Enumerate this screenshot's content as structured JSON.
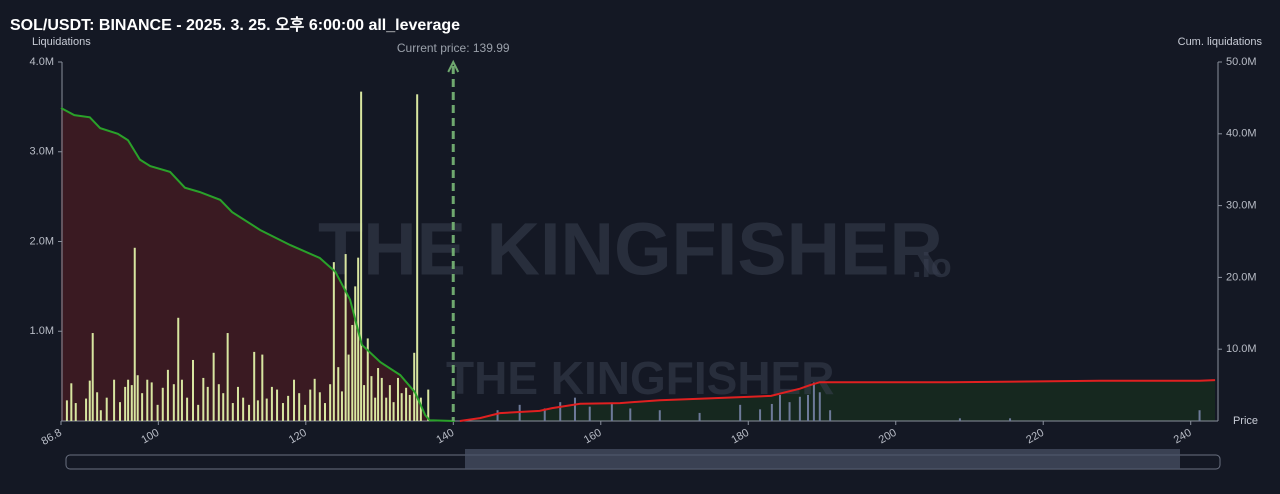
{
  "chart_data": {
    "type": "liquidation",
    "title": "SOL/USDT: BINANCE - 2025. 3. 25. 오후 6:00:00 all_leverage",
    "y_label": "Liquidations",
    "y2_label": "Cum. liquidations",
    "x_label": "Price",
    "watermark": "THE KINGFISHER",
    "watermark_suffix": ".io",
    "current_price": {
      "value": 139.99,
      "label": "Current price: 139.99"
    },
    "xlim": [
      86.8,
      243.7
    ],
    "xticks": [
      86.8,
      100,
      120,
      140,
      160,
      180,
      200,
      220,
      240
    ],
    "ylim": [
      0,
      4000000
    ],
    "yticks": [
      {
        "value": 1000000,
        "label": "1.0M"
      },
      {
        "value": 2000000,
        "label": "2.0M"
      },
      {
        "value": 3000000,
        "label": "3.0M"
      },
      {
        "value": 4000000,
        "label": "4.0M"
      }
    ],
    "y2lim": [
      0,
      50000000
    ],
    "y2ticks": [
      {
        "value": 10000000,
        "label": "10.0M"
      },
      {
        "value": 20000000,
        "label": "20.0M"
      },
      {
        "value": 30000000,
        "label": "30.0M"
      },
      {
        "value": 40000000,
        "label": "40.0M"
      },
      {
        "value": 50000000,
        "label": "50.0M"
      }
    ],
    "long_bars": {
      "color": "#d8e6a0",
      "x": [
        87.6,
        88.2,
        88.8,
        90.2,
        90.7,
        91.1,
        91.7,
        92.2,
        93.0,
        94.0,
        94.8,
        95.5,
        95.9,
        96.4,
        96.8,
        97.2,
        97.8,
        98.5,
        99.1,
        99.9,
        100.6,
        101.3,
        102.1,
        102.7,
        103.2,
        103.9,
        104.7,
        105.4,
        106.1,
        106.7,
        107.5,
        108.2,
        108.8,
        109.4,
        110.1,
        110.8,
        111.5,
        112.3,
        113.0,
        113.5,
        114.1,
        114.7,
        115.4,
        116.1,
        116.9,
        117.6,
        118.4,
        119.1,
        119.9,
        120.6,
        121.2,
        121.9,
        122.6,
        123.3,
        123.8,
        124.4,
        124.9,
        125.4,
        125.8,
        126.3,
        126.7,
        127.1,
        127.5,
        127.9,
        128.4,
        128.9,
        129.4,
        129.8,
        130.3,
        130.9,
        131.4,
        131.9,
        132.5,
        133.0,
        133.6,
        134.1,
        134.7,
        135.1,
        135.6,
        136.6
      ],
      "values": [
        230000,
        420000,
        200000,
        250000,
        450000,
        980000,
        320000,
        120000,
        260000,
        460000,
        210000,
        380000,
        460000,
        400000,
        1930000,
        510000,
        310000,
        460000,
        430000,
        180000,
        370000,
        570000,
        410000,
        1150000,
        460000,
        260000,
        680000,
        180000,
        480000,
        380000,
        760000,
        410000,
        310000,
        980000,
        200000,
        380000,
        260000,
        180000,
        770000,
        230000,
        740000,
        250000,
        380000,
        350000,
        200000,
        280000,
        460000,
        310000,
        180000,
        350000,
        470000,
        320000,
        200000,
        410000,
        1770000,
        600000,
        330000,
        1860000,
        740000,
        1070000,
        1500000,
        1820000,
        3670000,
        400000,
        920000,
        500000,
        260000,
        590000,
        480000,
        260000,
        400000,
        210000,
        480000,
        310000,
        370000,
        290000,
        760000,
        3640000,
        260000,
        350000
      ]
    },
    "short_bars": {
      "color": "#6d7a99",
      "x": [
        146.0,
        149.0,
        152.4,
        154.5,
        156.5,
        158.5,
        161.5,
        164.0,
        168.0,
        173.4,
        178.9,
        181.6,
        183.2,
        184.3,
        185.6,
        187.0,
        188.1,
        188.9,
        189.7,
        191.1,
        208.7,
        215.5,
        241.2
      ],
      "values": [
        120000,
        180000,
        140000,
        210000,
        260000,
        160000,
        190000,
        140000,
        120000,
        90000,
        180000,
        130000,
        190000,
        290000,
        210000,
        270000,
        290000,
        430000,
        320000,
        120000,
        30000,
        30000,
        120000
      ]
    },
    "long_cum": {
      "color": "#2aa12a",
      "fill": "#3a1a22",
      "x": [
        86.8,
        88.6,
        90.7,
        92.1,
        94.5,
        95.9,
        97.5,
        98.9,
        101.6,
        103.6,
        105.6,
        108.4,
        110.0,
        113.8,
        117.9,
        121.9,
        124.0,
        126.0,
        127.6,
        130.1,
        132.8,
        134.8,
        136.2,
        136.8,
        140.2
      ],
      "values": [
        43600000,
        42600000,
        42300000,
        40800000,
        40000000,
        39100000,
        36400000,
        35500000,
        34700000,
        32500000,
        31900000,
        30800000,
        29100000,
        26600000,
        24500000,
        22700000,
        20800000,
        16900000,
        10600000,
        8200000,
        6400000,
        4000000,
        800000,
        100000,
        0
      ]
    },
    "short_cum": {
      "color": "#e02020",
      "fill": "#16281f",
      "x": [
        140.9,
        143.6,
        146.3,
        151.7,
        153.4,
        157.2,
        162.6,
        168.0,
        173.4,
        183.1,
        185.0,
        187.0,
        188.4,
        189.7,
        207.3,
        227.6,
        241.2,
        243.3
      ],
      "values": [
        0,
        400000,
        1100000,
        1400000,
        1800000,
        2400000,
        2500000,
        2900000,
        3100000,
        3500000,
        4000000,
        4500000,
        5000000,
        5400000,
        5400000,
        5600000,
        5600000,
        5700000
      ]
    }
  }
}
